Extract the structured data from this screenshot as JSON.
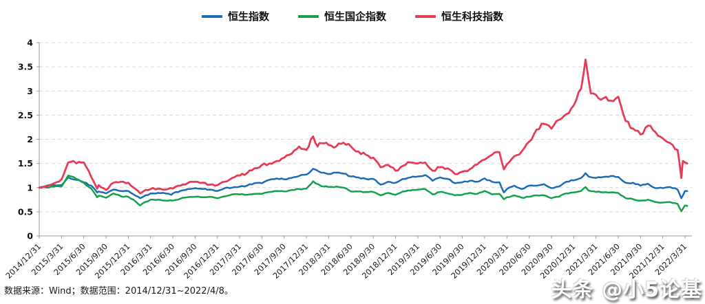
{
  "legend": [
    {
      "label": "恒生指数",
      "color": "#1b6cb5"
    },
    {
      "label": "恒生国企指数",
      "color": "#12a34a"
    },
    {
      "label": "恒生科技指数",
      "color": "#e73c55"
    }
  ],
  "footnote": "数据来源：Wind；数据范围：2014/12/31~2022/4/8。",
  "watermark": "头条 @小5论基",
  "chart_data": {
    "type": "line",
    "title": "",
    "xlabel": "",
    "ylabel": "",
    "ylim": [
      0,
      4
    ],
    "yticks": [
      0,
      0.5,
      1,
      1.5,
      2,
      2.5,
      3,
      3.5,
      4
    ],
    "grid": "horizontal-dashed",
    "legend_position": "top-center",
    "x_unit": "months since 2014/12/31 (value 1.0 = index level on 2014/12/31)",
    "xtick_labels": [
      "2014/12/31",
      "2015/3/31",
      "2015/6/30",
      "2015/9/30",
      "2015/12/31",
      "2016/3/31",
      "2016/6/30",
      "2016/9/30",
      "2016/12/31",
      "2017/3/31",
      "2017/6/30",
      "2017/9/30",
      "2017/12/31",
      "2018/3/31",
      "2018/6/30",
      "2018/9/30",
      "2018/12/31",
      "2019/3/31",
      "2019/6/30",
      "2019/9/30",
      "2019/12/31",
      "2020/3/31",
      "2020/6/30",
      "2020/9/30",
      "2020/12/31",
      "2021/3/31",
      "2021/6/30",
      "2021/9/30",
      "2021/12/31",
      "2022/3/31"
    ],
    "series": [
      {
        "name": "恒生指数",
        "color": "#1b6cb5",
        "points": [
          [
            0,
            1.0
          ],
          [
            1,
            1.04
          ],
          [
            2,
            1.05
          ],
          [
            3,
            1.05
          ],
          [
            3.9,
            1.21
          ],
          [
            5,
            1.16
          ],
          [
            6,
            1.11
          ],
          [
            7,
            1.04
          ],
          [
            7.8,
            0.9
          ],
          [
            8,
            0.92
          ],
          [
            9,
            0.88
          ],
          [
            10,
            0.96
          ],
          [
            11,
            0.93
          ],
          [
            12,
            0.93
          ],
          [
            13,
            0.83
          ],
          [
            13.6,
            0.78
          ],
          [
            14,
            0.81
          ],
          [
            15,
            0.88
          ],
          [
            16,
            0.89
          ],
          [
            17,
            0.88
          ],
          [
            17.8,
            0.85
          ],
          [
            18,
            0.88
          ],
          [
            19,
            0.93
          ],
          [
            20,
            0.97
          ],
          [
            21,
            0.99
          ],
          [
            22,
            0.97
          ],
          [
            23,
            0.96
          ],
          [
            24,
            0.93
          ],
          [
            25,
            0.99
          ],
          [
            26,
            1.0
          ],
          [
            27,
            1.02
          ],
          [
            28,
            1.04
          ],
          [
            29,
            1.09
          ],
          [
            30,
            1.09
          ],
          [
            31,
            1.16
          ],
          [
            32,
            1.19
          ],
          [
            33,
            1.17
          ],
          [
            34,
            1.2
          ],
          [
            35,
            1.24
          ],
          [
            36,
            1.27
          ],
          [
            36.9,
            1.39
          ],
          [
            38,
            1.31
          ],
          [
            39,
            1.28
          ],
          [
            40,
            1.31
          ],
          [
            41,
            1.29
          ],
          [
            42,
            1.23
          ],
          [
            43,
            1.21
          ],
          [
            44,
            1.18
          ],
          [
            45,
            1.18
          ],
          [
            46,
            1.06
          ],
          [
            47,
            1.12
          ],
          [
            48,
            1.1
          ],
          [
            49,
            1.18
          ],
          [
            50,
            1.21
          ],
          [
            51,
            1.23
          ],
          [
            52,
            1.26
          ],
          [
            53,
            1.14
          ],
          [
            54,
            1.21
          ],
          [
            55,
            1.18
          ],
          [
            56,
            1.09
          ],
          [
            57,
            1.11
          ],
          [
            58,
            1.14
          ],
          [
            59,
            1.12
          ],
          [
            60,
            1.19
          ],
          [
            61,
            1.12
          ],
          [
            62,
            1.11
          ],
          [
            62.6,
            0.9
          ],
          [
            63,
            0.97
          ],
          [
            64,
            1.04
          ],
          [
            65,
            0.97
          ],
          [
            66,
            1.04
          ],
          [
            67,
            1.04
          ],
          [
            68,
            1.07
          ],
          [
            69,
            0.99
          ],
          [
            70,
            1.02
          ],
          [
            71,
            1.12
          ],
          [
            72,
            1.15
          ],
          [
            73,
            1.2
          ],
          [
            73.6,
            1.3
          ],
          [
            74,
            1.23
          ],
          [
            75,
            1.2
          ],
          [
            76,
            1.22
          ],
          [
            77,
            1.24
          ],
          [
            78,
            1.22
          ],
          [
            79,
            1.1
          ],
          [
            80,
            1.1
          ],
          [
            81,
            1.04
          ],
          [
            82,
            1.08
          ],
          [
            83,
            0.99
          ],
          [
            84,
            0.99
          ],
          [
            85,
            1.01
          ],
          [
            86,
            0.96
          ],
          [
            86.5,
            0.78
          ],
          [
            87,
            0.93
          ],
          [
            87.3,
            0.93
          ]
        ]
      },
      {
        "name": "恒生国企指数",
        "color": "#12a34a",
        "points": [
          [
            0,
            1.0
          ],
          [
            1,
            1.0
          ],
          [
            2,
            1.02
          ],
          [
            3,
            1.02
          ],
          [
            3.9,
            1.25
          ],
          [
            5,
            1.18
          ],
          [
            6,
            1.1
          ],
          [
            7,
            0.98
          ],
          [
            7.8,
            0.8
          ],
          [
            8,
            0.83
          ],
          [
            9,
            0.79
          ],
          [
            10,
            0.88
          ],
          [
            11,
            0.82
          ],
          [
            12,
            0.81
          ],
          [
            13,
            0.71
          ],
          [
            13.6,
            0.63
          ],
          [
            14,
            0.68
          ],
          [
            15,
            0.75
          ],
          [
            16,
            0.75
          ],
          [
            17,
            0.73
          ],
          [
            18,
            0.73
          ],
          [
            19,
            0.77
          ],
          [
            20,
            0.8
          ],
          [
            21,
            0.81
          ],
          [
            22,
            0.8
          ],
          [
            23,
            0.81
          ],
          [
            24,
            0.78
          ],
          [
            25,
            0.82
          ],
          [
            26,
            0.86
          ],
          [
            27,
            0.86
          ],
          [
            28,
            0.85
          ],
          [
            29,
            0.87
          ],
          [
            30,
            0.87
          ],
          [
            31,
            0.91
          ],
          [
            32,
            0.93
          ],
          [
            33,
            0.92
          ],
          [
            34,
            0.95
          ],
          [
            35,
            0.97
          ],
          [
            36,
            0.98
          ],
          [
            36.9,
            1.13
          ],
          [
            38,
            1.03
          ],
          [
            39,
            1.01
          ],
          [
            40,
            1.02
          ],
          [
            41,
            1.0
          ],
          [
            42,
            0.92
          ],
          [
            43,
            0.92
          ],
          [
            44,
            0.91
          ],
          [
            45,
            0.91
          ],
          [
            46,
            0.84
          ],
          [
            47,
            0.89
          ],
          [
            48,
            0.85
          ],
          [
            49,
            0.92
          ],
          [
            50,
            0.94
          ],
          [
            51,
            0.96
          ],
          [
            52,
            0.97
          ],
          [
            53,
            0.86
          ],
          [
            54,
            0.91
          ],
          [
            55,
            0.88
          ],
          [
            56,
            0.84
          ],
          [
            57,
            0.85
          ],
          [
            58,
            0.89
          ],
          [
            59,
            0.87
          ],
          [
            60,
            0.93
          ],
          [
            61,
            0.86
          ],
          [
            62,
            0.87
          ],
          [
            62.6,
            0.76
          ],
          [
            63,
            0.8
          ],
          [
            64,
            0.84
          ],
          [
            65,
            0.79
          ],
          [
            66,
            0.81
          ],
          [
            67,
            0.84
          ],
          [
            68,
            0.84
          ],
          [
            69,
            0.78
          ],
          [
            70,
            0.81
          ],
          [
            71,
            0.88
          ],
          [
            72,
            0.9
          ],
          [
            73,
            0.93
          ],
          [
            73.6,
            1.01
          ],
          [
            74,
            0.94
          ],
          [
            75,
            0.91
          ],
          [
            76,
            0.9
          ],
          [
            77,
            0.9
          ],
          [
            78,
            0.89
          ],
          [
            79,
            0.78
          ],
          [
            80,
            0.76
          ],
          [
            81,
            0.73
          ],
          [
            82,
            0.75
          ],
          [
            83,
            0.7
          ],
          [
            84,
            0.69
          ],
          [
            85,
            0.7
          ],
          [
            86,
            0.66
          ],
          [
            86.5,
            0.51
          ],
          [
            87,
            0.63
          ],
          [
            87.3,
            0.62
          ]
        ]
      },
      {
        "name": "恒生科技指数",
        "color": "#e73c55",
        "points": [
          [
            0,
            1.0
          ],
          [
            1,
            1.02
          ],
          [
            2,
            1.09
          ],
          [
            3,
            1.17
          ],
          [
            3.9,
            1.52
          ],
          [
            4.6,
            1.55
          ],
          [
            5,
            1.5
          ],
          [
            6,
            1.52
          ],
          [
            7,
            1.22
          ],
          [
            7.8,
            0.98
          ],
          [
            8,
            1.05
          ],
          [
            9,
            0.95
          ],
          [
            10,
            1.1
          ],
          [
            11,
            1.12
          ],
          [
            12,
            1.1
          ],
          [
            13,
            0.97
          ],
          [
            13.6,
            0.88
          ],
          [
            14,
            0.92
          ],
          [
            15,
            0.97
          ],
          [
            16,
            0.98
          ],
          [
            17,
            0.96
          ],
          [
            18,
            0.98
          ],
          [
            19,
            1.04
          ],
          [
            20,
            1.09
          ],
          [
            21,
            1.12
          ],
          [
            22,
            1.1
          ],
          [
            23,
            1.06
          ],
          [
            24,
            1.05
          ],
          [
            25,
            1.12
          ],
          [
            26,
            1.2
          ],
          [
            27,
            1.25
          ],
          [
            28,
            1.3
          ],
          [
            29,
            1.4
          ],
          [
            30,
            1.47
          ],
          [
            31,
            1.5
          ],
          [
            32,
            1.55
          ],
          [
            33,
            1.62
          ],
          [
            34,
            1.7
          ],
          [
            35,
            1.85
          ],
          [
            36,
            1.78
          ],
          [
            36.9,
            2.06
          ],
          [
            37.5,
            1.85
          ],
          [
            38,
            1.92
          ],
          [
            39,
            1.88
          ],
          [
            40,
            1.85
          ],
          [
            41,
            1.93
          ],
          [
            42,
            1.85
          ],
          [
            43,
            1.75
          ],
          [
            44,
            1.68
          ],
          [
            45,
            1.62
          ],
          [
            46,
            1.42
          ],
          [
            47,
            1.47
          ],
          [
            48,
            1.35
          ],
          [
            49,
            1.45
          ],
          [
            50,
            1.52
          ],
          [
            51,
            1.5
          ],
          [
            52,
            1.52
          ],
          [
            53,
            1.35
          ],
          [
            54,
            1.42
          ],
          [
            55,
            1.4
          ],
          [
            56,
            1.28
          ],
          [
            57,
            1.33
          ],
          [
            58,
            1.38
          ],
          [
            59,
            1.48
          ],
          [
            60,
            1.58
          ],
          [
            61,
            1.68
          ],
          [
            62,
            1.73
          ],
          [
            62.6,
            1.38
          ],
          [
            63,
            1.48
          ],
          [
            64,
            1.65
          ],
          [
            65,
            1.75
          ],
          [
            66,
            1.95
          ],
          [
            67,
            2.2
          ],
          [
            68,
            2.32
          ],
          [
            69,
            2.22
          ],
          [
            70,
            2.4
          ],
          [
            71,
            2.52
          ],
          [
            72,
            2.7
          ],
          [
            73,
            3.05
          ],
          [
            73.6,
            3.65
          ],
          [
            74,
            3.25
          ],
          [
            74.3,
            2.95
          ],
          [
            75,
            2.92
          ],
          [
            76,
            2.85
          ],
          [
            77,
            2.8
          ],
          [
            78,
            2.88
          ],
          [
            79,
            2.38
          ],
          [
            80,
            2.22
          ],
          [
            81,
            2.1
          ],
          [
            82,
            2.28
          ],
          [
            83,
            2.15
          ],
          [
            84,
            2.02
          ],
          [
            85,
            1.92
          ],
          [
            86,
            1.78
          ],
          [
            86.5,
            1.2
          ],
          [
            86.7,
            1.55
          ],
          [
            87,
            1.52
          ],
          [
            87.3,
            1.5
          ]
        ]
      }
    ]
  }
}
